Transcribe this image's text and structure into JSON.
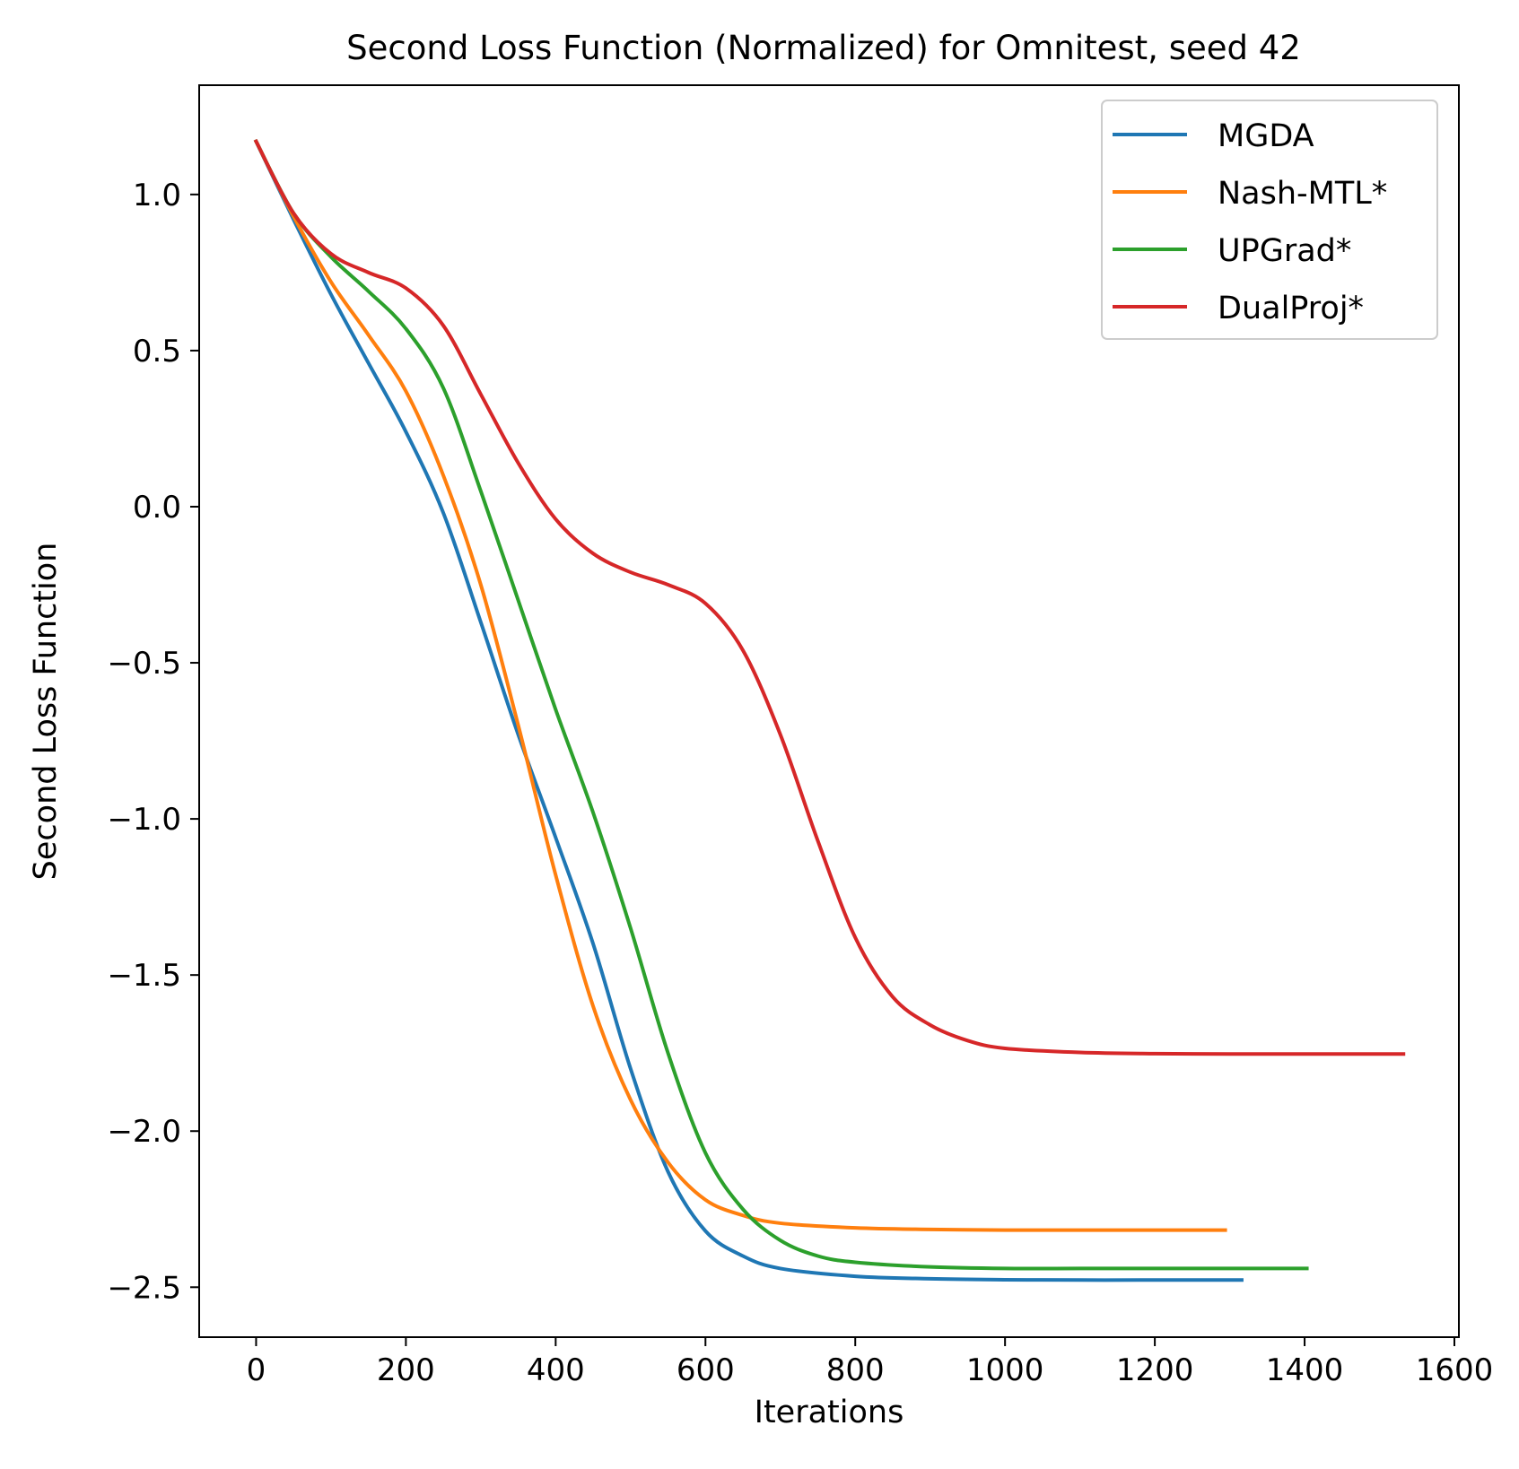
{
  "chart_data": {
    "type": "line",
    "title": "Second Loss Function (Normalized) for Omnitest, seed 42",
    "xlabel": "Iterations",
    "ylabel": "Second Loss Function",
    "xlim": [
      -76,
      1606
    ],
    "ylim": [
      -2.66,
      1.35
    ],
    "xticks": [
      0,
      200,
      400,
      600,
      800,
      1000,
      1200,
      1400,
      1600
    ],
    "xtick_labels": [
      "0",
      "200",
      "400",
      "600",
      "800",
      "1000",
      "1200",
      "1400",
      "1600"
    ],
    "yticks": [
      1.0,
      0.5,
      0.0,
      -0.5,
      -1.0,
      -1.5,
      -2.0,
      -2.5
    ],
    "ytick_labels": [
      "1.0",
      "0.5",
      "0.0",
      "−0.5",
      "−1.0",
      "−1.5",
      "−2.0",
      "−2.5"
    ],
    "grid": false,
    "legend_position": "top-right",
    "series": [
      {
        "name": "MGDA",
        "color": "#1f77b4",
        "points": [
          [
            0,
            1.17
          ],
          [
            50,
            0.92
          ],
          [
            100,
            0.68
          ],
          [
            150,
            0.46
          ],
          [
            200,
            0.24
          ],
          [
            250,
            -0.02
          ],
          [
            300,
            -0.37
          ],
          [
            350,
            -0.73
          ],
          [
            400,
            -1.06
          ],
          [
            450,
            -1.4
          ],
          [
            500,
            -1.8
          ],
          [
            550,
            -2.13
          ],
          [
            600,
            -2.32
          ],
          [
            650,
            -2.4
          ],
          [
            700,
            -2.44
          ],
          [
            800,
            -2.465
          ],
          [
            900,
            -2.473
          ],
          [
            1000,
            -2.476
          ],
          [
            1100,
            -2.477
          ],
          [
            1200,
            -2.477
          ],
          [
            1316,
            -2.477
          ]
        ]
      },
      {
        "name": "Nash-MTL*",
        "color": "#ff7f0e",
        "points": [
          [
            0,
            1.17
          ],
          [
            50,
            0.93
          ],
          [
            100,
            0.72
          ],
          [
            150,
            0.55
          ],
          [
            200,
            0.37
          ],
          [
            250,
            0.1
          ],
          [
            300,
            -0.25
          ],
          [
            350,
            -0.7
          ],
          [
            400,
            -1.18
          ],
          [
            450,
            -1.6
          ],
          [
            500,
            -1.9
          ],
          [
            550,
            -2.1
          ],
          [
            600,
            -2.22
          ],
          [
            650,
            -2.27
          ],
          [
            700,
            -2.295
          ],
          [
            800,
            -2.31
          ],
          [
            900,
            -2.315
          ],
          [
            1000,
            -2.317
          ],
          [
            1100,
            -2.317
          ],
          [
            1200,
            -2.317
          ],
          [
            1294,
            -2.317
          ]
        ]
      },
      {
        "name": "UPGrad*",
        "color": "#2ca02c",
        "points": [
          [
            0,
            1.17
          ],
          [
            50,
            0.94
          ],
          [
            100,
            0.8
          ],
          [
            150,
            0.69
          ],
          [
            200,
            0.57
          ],
          [
            250,
            0.38
          ],
          [
            300,
            0.05
          ],
          [
            350,
            -0.3
          ],
          [
            400,
            -0.65
          ],
          [
            450,
            -0.98
          ],
          [
            500,
            -1.35
          ],
          [
            550,
            -1.75
          ],
          [
            600,
            -2.07
          ],
          [
            650,
            -2.25
          ],
          [
            700,
            -2.35
          ],
          [
            750,
            -2.4
          ],
          [
            800,
            -2.42
          ],
          [
            900,
            -2.435
          ],
          [
            1000,
            -2.44
          ],
          [
            1100,
            -2.44
          ],
          [
            1200,
            -2.44
          ],
          [
            1300,
            -2.44
          ],
          [
            1403,
            -2.44
          ]
        ]
      },
      {
        "name": "DualProj*",
        "color": "#d62728",
        "points": [
          [
            0,
            1.17
          ],
          [
            50,
            0.94
          ],
          [
            100,
            0.81
          ],
          [
            150,
            0.75
          ],
          [
            200,
            0.7
          ],
          [
            250,
            0.58
          ],
          [
            300,
            0.36
          ],
          [
            350,
            0.14
          ],
          [
            400,
            -0.04
          ],
          [
            450,
            -0.15
          ],
          [
            500,
            -0.21
          ],
          [
            550,
            -0.25
          ],
          [
            600,
            -0.31
          ],
          [
            650,
            -0.46
          ],
          [
            700,
            -0.73
          ],
          [
            750,
            -1.07
          ],
          [
            800,
            -1.38
          ],
          [
            850,
            -1.57
          ],
          [
            900,
            -1.66
          ],
          [
            950,
            -1.71
          ],
          [
            1000,
            -1.735
          ],
          [
            1100,
            -1.748
          ],
          [
            1200,
            -1.752
          ],
          [
            1300,
            -1.753
          ],
          [
            1400,
            -1.753
          ],
          [
            1532,
            -1.753
          ]
        ]
      }
    ]
  }
}
